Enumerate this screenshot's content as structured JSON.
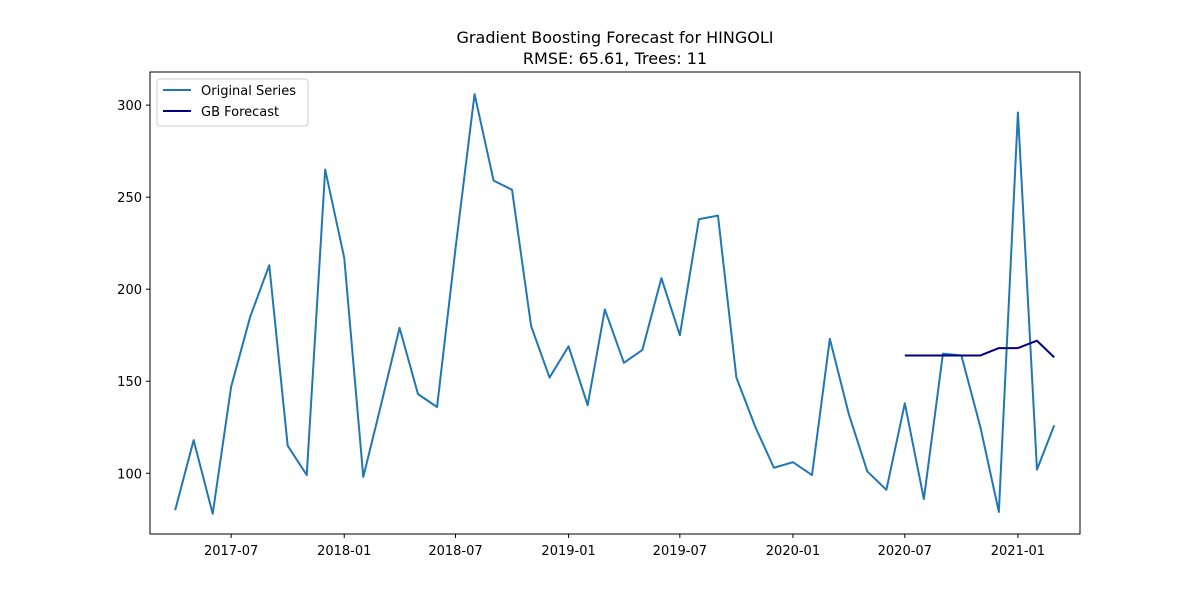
{
  "chart_data": {
    "type": "line",
    "title": "Gradient Boosting Forecast for HINGOLI",
    "subtitle": "RMSE: 65.61, Trees: 11",
    "xlabel": "",
    "ylabel": "",
    "x_ticks": [
      "2017-07",
      "2018-01",
      "2018-07",
      "2019-01",
      "2019-07",
      "2020-01",
      "2020-07",
      "2021-01"
    ],
    "y_ticks": [
      100,
      150,
      200,
      250,
      300
    ],
    "ylim": [
      67,
      318
    ],
    "xlim": [
      "2017-02-19",
      "2021-04-12"
    ],
    "grid": false,
    "legend_position": "top-left",
    "series": [
      {
        "name": "Original Series",
        "color": "#1f77b4",
        "points": [
          [
            "2017-04-01",
            80
          ],
          [
            "2017-05-01",
            118
          ],
          [
            "2017-06-01",
            78
          ],
          [
            "2017-07-01",
            147
          ],
          [
            "2017-08-01",
            185
          ],
          [
            "2017-09-01",
            213
          ],
          [
            "2017-10-01",
            115
          ],
          [
            "2017-11-01",
            99
          ],
          [
            "2017-12-01",
            265
          ],
          [
            "2018-01-01",
            217
          ],
          [
            "2018-02-01",
            98
          ],
          [
            "2018-03-01",
            136
          ],
          [
            "2018-04-01",
            179
          ],
          [
            "2018-05-01",
            143
          ],
          [
            "2018-06-01",
            136
          ],
          [
            "2018-07-01",
            222
          ],
          [
            "2018-08-01",
            306
          ],
          [
            "2018-09-01",
            259
          ],
          [
            "2018-10-01",
            254
          ],
          [
            "2018-11-01",
            180
          ],
          [
            "2018-12-01",
            152
          ],
          [
            "2019-01-01",
            169
          ],
          [
            "2019-02-01",
            137
          ],
          [
            "2019-03-01",
            189
          ],
          [
            "2019-04-01",
            160
          ],
          [
            "2019-05-01",
            167
          ],
          [
            "2019-06-01",
            206
          ],
          [
            "2019-07-01",
            175
          ],
          [
            "2019-08-01",
            238
          ],
          [
            "2019-09-01",
            240
          ],
          [
            "2019-10-01",
            152
          ],
          [
            "2019-11-01",
            125
          ],
          [
            "2019-12-01",
            103
          ],
          [
            "2020-01-01",
            106
          ],
          [
            "2020-02-01",
            99
          ],
          [
            "2020-03-01",
            173
          ],
          [
            "2020-04-01",
            132
          ],
          [
            "2020-05-01",
            101
          ],
          [
            "2020-06-01",
            91
          ],
          [
            "2020-07-01",
            138
          ],
          [
            "2020-08-01",
            86
          ],
          [
            "2020-09-01",
            165
          ],
          [
            "2020-10-01",
            164
          ],
          [
            "2020-11-01",
            125
          ],
          [
            "2020-12-01",
            79
          ],
          [
            "2021-01-01",
            296
          ],
          [
            "2021-02-01",
            102
          ],
          [
            "2021-03-01",
            126
          ]
        ]
      },
      {
        "name": "GB Forecast",
        "color": "#000080",
        "points": [
          [
            "2020-07-01",
            164
          ],
          [
            "2020-08-01",
            164
          ],
          [
            "2020-09-01",
            164
          ],
          [
            "2020-10-01",
            164
          ],
          [
            "2020-11-01",
            164
          ],
          [
            "2020-12-01",
            168
          ],
          [
            "2021-01-01",
            168
          ],
          [
            "2021-02-01",
            172
          ],
          [
            "2021-03-01",
            163
          ]
        ]
      }
    ]
  }
}
